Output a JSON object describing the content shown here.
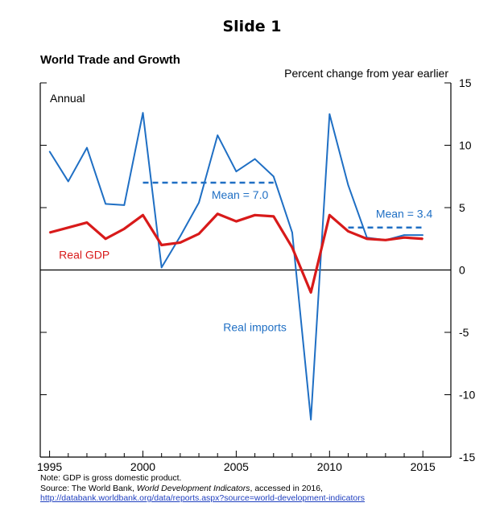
{
  "slide": {
    "title": "Slide 1"
  },
  "notes": {
    "note": "Note: GDP is gross domestic product.",
    "source_prefix": "Source: The World Bank, ",
    "source_title": "World Development Indicators",
    "source_suffix": ", accessed in 2016,",
    "link": "http://databank.worldbank.org/data/reports.aspx?source=world-development-indicators"
  },
  "chart_data": {
    "type": "line",
    "title": "World Trade and Growth",
    "ylabel": "Percent change from year earlier",
    "corner_label": "Annual",
    "xlim": [
      1994.5,
      2016.5
    ],
    "ylim": [
      -15,
      15
    ],
    "x_ticks": [
      1995,
      2000,
      2005,
      2010,
      2015
    ],
    "y_ticks": [
      -15,
      -10,
      -5,
      0,
      5,
      10,
      15
    ],
    "series": [
      {
        "name": "Real imports",
        "label": "Real imports",
        "color": "#1f6fc4",
        "x": [
          1995,
          1996,
          1997,
          1998,
          1999,
          2000,
          2001,
          2002,
          2003,
          2004,
          2005,
          2006,
          2007,
          2008,
          2009,
          2010,
          2011,
          2012,
          2013,
          2014,
          2015
        ],
        "values": [
          9.5,
          7.1,
          9.8,
          5.3,
          5.2,
          12.6,
          0.2,
          2.7,
          5.4,
          10.8,
          7.9,
          8.9,
          7.5,
          3.0,
          -12.0,
          12.5,
          6.8,
          2.6,
          2.4,
          2.8,
          2.8
        ]
      },
      {
        "name": "Real GDP",
        "label": "Real GDP",
        "color": "#d81a1a",
        "x": [
          1995,
          1996,
          1997,
          1998,
          1999,
          2000,
          2001,
          2002,
          2003,
          2004,
          2005,
          2006,
          2007,
          2008,
          2009,
          2010,
          2011,
          2012,
          2013,
          2014,
          2015
        ],
        "values": [
          3.0,
          3.4,
          3.8,
          2.5,
          3.3,
          4.4,
          2.0,
          2.2,
          2.9,
          4.5,
          3.9,
          4.4,
          4.3,
          1.8,
          -1.8,
          4.4,
          3.1,
          2.5,
          2.4,
          2.6,
          2.5
        ]
      }
    ],
    "mean_lines": [
      {
        "label": "Mean = 7.0",
        "value": 7.0,
        "x_start": 2000,
        "x_end": 2007,
        "color": "#1f6fc4"
      },
      {
        "label": "Mean = 3.4",
        "value": 3.4,
        "x_start": 2011,
        "x_end": 2015,
        "color": "#1f6fc4"
      }
    ]
  }
}
